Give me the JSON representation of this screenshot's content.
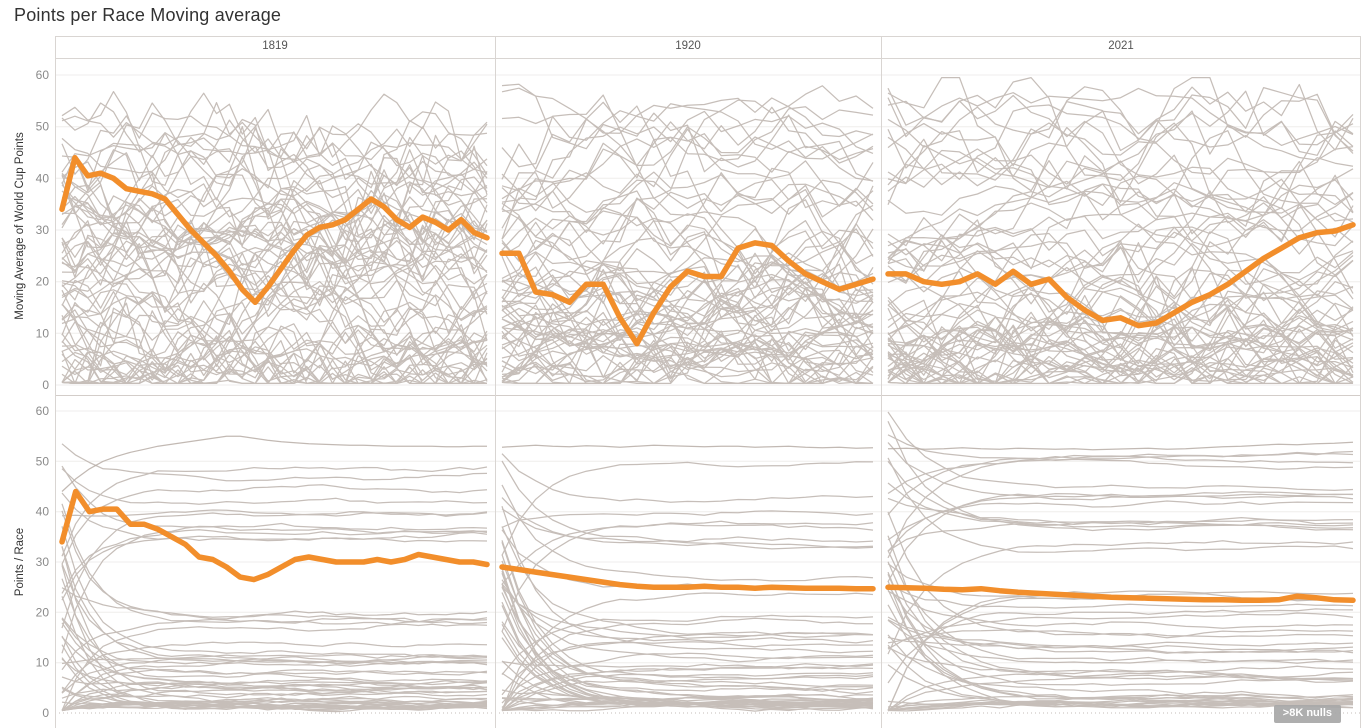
{
  "title": "Points per Race Moving average",
  "badge": ">8K nulls",
  "colors": {
    "accent": "#f28e2b",
    "bg_line": "#b7ada6",
    "grid": "#efedec",
    "frame": "#d9d5d2",
    "row_separator": "#d3cdc9",
    "zero_dotted": "#c6beb9",
    "tick_text": "#8a8a8a",
    "title_text": "#323232",
    "badge_bg": "#a8a8a8",
    "badge_text": "#ffffff"
  },
  "chart_data": {
    "type": "line",
    "layout": "trellis 2 rows x 3 columns, shared y axis",
    "columns": [
      "1819",
      "1920",
      "2021"
    ],
    "rows": [
      {
        "label": "Moving Average of World Cup Points"
      },
      {
        "label": "Points / Race"
      }
    ],
    "y_ticks": [
      0,
      10,
      20,
      30,
      40,
      50,
      60
    ],
    "ylim": [
      0,
      60
    ],
    "grid": "horizontal",
    "legend": "none",
    "series_note": "one orange highlighted athlete over many gray athlete lines per panel",
    "panels": {
      "r0c0": {
        "highlight": [
          34,
          44,
          40.5,
          41,
          40,
          38,
          37.5,
          37,
          36,
          33,
          30,
          27.5,
          25,
          22,
          18.5,
          16,
          19,
          22.5,
          26,
          29,
          30.5,
          31,
          32,
          34,
          36,
          34.5,
          32,
          30.5,
          32.5,
          31.5,
          30,
          32,
          29.5,
          28.5
        ]
      },
      "r0c1": {
        "highlight": [
          25.5,
          25.5,
          18,
          17.5,
          16,
          19.5,
          19.5,
          13,
          8,
          14,
          19,
          22,
          21,
          21,
          26.5,
          27.5,
          27,
          24,
          21.5,
          20,
          18.5,
          19.5,
          20.5
        ]
      },
      "r0c2": {
        "highlight": [
          21.5,
          21.5,
          20,
          19.5,
          20,
          21.5,
          19.5,
          22,
          19.5,
          20.5,
          17,
          14.5,
          12.5,
          13,
          11.5,
          12,
          14,
          16,
          17.5,
          19.5,
          22,
          24.5,
          26.5,
          28.5,
          29.5,
          29.8,
          31
        ]
      },
      "r1c0": {
        "highlight": [
          34,
          44,
          40,
          40.5,
          40.5,
          37.5,
          37.5,
          36.5,
          35,
          33.5,
          31,
          30.5,
          29,
          27,
          26.5,
          27.5,
          29,
          30.5,
          31,
          30.5,
          30,
          30,
          30,
          30.5,
          30,
          30.5,
          31.5,
          31,
          30.5,
          30,
          30,
          29.5
        ],
        "top_line": [
          44,
          46.5,
          48.5,
          50,
          51,
          51.8,
          52.4,
          53,
          53.4,
          53.8,
          54.2,
          54.6,
          55,
          55,
          54.6,
          54.2,
          53.9,
          53.7,
          53.5,
          53.4,
          53.3,
          53.2,
          53.2,
          53.1,
          53,
          53,
          53,
          53,
          52.9,
          52.9,
          53,
          53
        ]
      },
      "r1c1": {
        "highlight": [
          29,
          28.5,
          28,
          27.5,
          27,
          26.5,
          26,
          25.5,
          25.2,
          25,
          25,
          25,
          25.2,
          25,
          25,
          24.8,
          25,
          24.9,
          24.8,
          24.8,
          24.8,
          24.7,
          24.7
        ],
        "top_line": [
          52.8,
          53,
          53.2,
          53,
          52.9,
          53.1,
          53,
          52.8,
          53,
          53.2,
          53.1,
          53,
          52.9,
          53,
          53,
          52.8,
          52.9,
          53,
          52.8,
          52.7,
          52.8,
          52.6,
          52.7
        ]
      },
      "r1c2": {
        "highlight": [
          25,
          24.9,
          24.8,
          24.6,
          24.5,
          24.7,
          24.3,
          24,
          23.8,
          23.6,
          23.4,
          23.2,
          23,
          22.9,
          22.8,
          22.7,
          22.6,
          22.5,
          22.5,
          22.4,
          22.4,
          22.5,
          23.2,
          22.9,
          22.5,
          22.4
        ],
        "top_line": [
          52.5,
          52.6,
          52.4,
          52.5,
          52.7,
          52.5,
          52.4,
          52.6,
          52.5,
          52.4,
          52.5,
          52.3,
          52.4,
          52.5,
          52.6,
          52.4,
          52.5,
          52.7,
          52.9,
          53,
          53.2,
          53.4,
          53.3,
          53.5,
          53.6,
          53.8
        ]
      }
    },
    "background": {
      "seed": 1337,
      "row_counts": [
        66,
        54
      ]
    }
  }
}
